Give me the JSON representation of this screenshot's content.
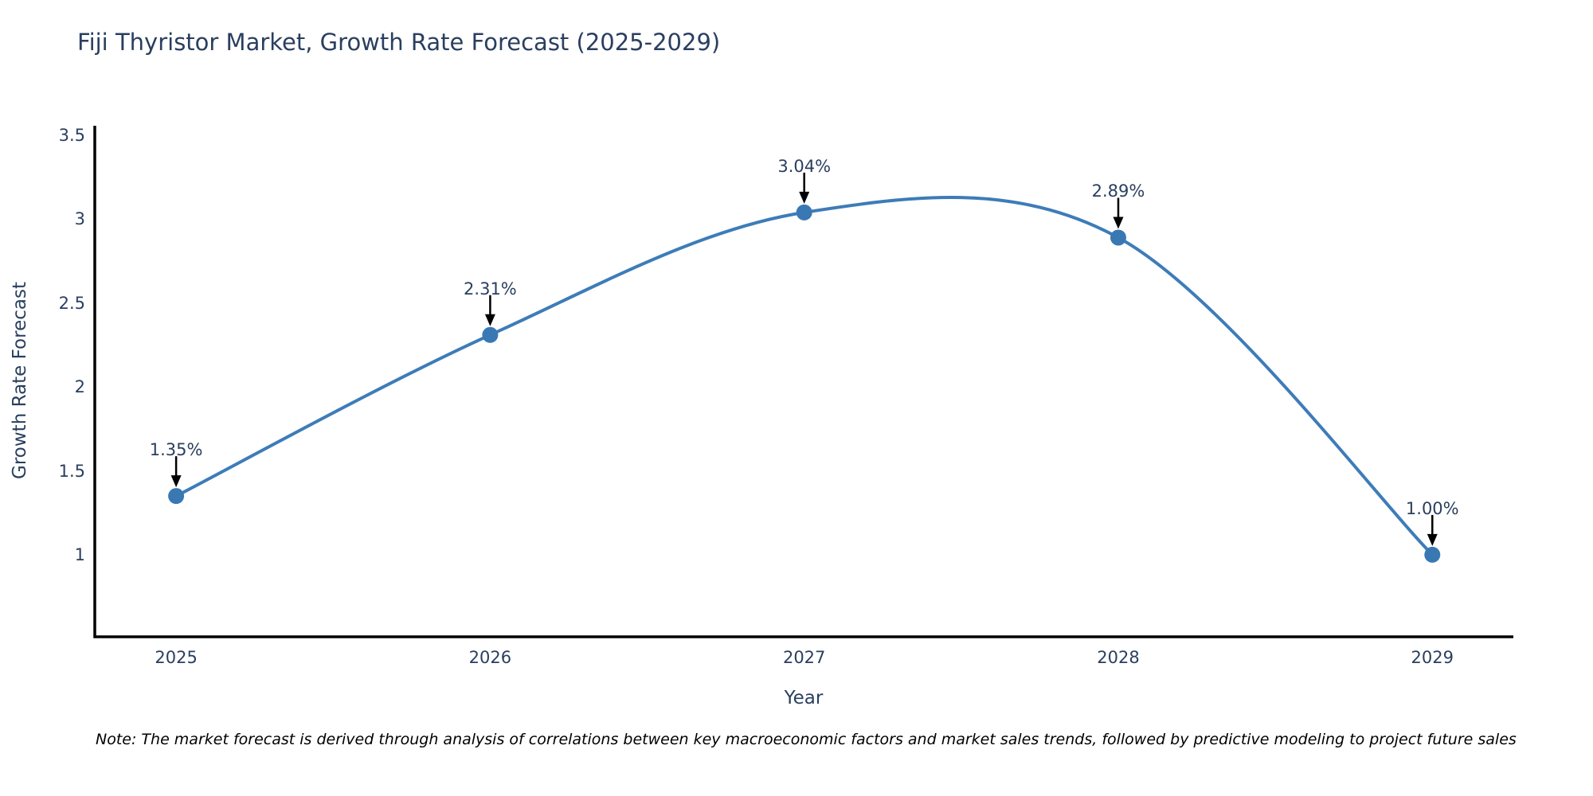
{
  "title": "Fiji Thyristor Market, Growth Rate Forecast (2025-2029)",
  "note": "Note: The market forecast is derived through analysis of correlations between key macroeconomic factors and market sales trends, followed by predictive modeling to project future sales",
  "chart_data": {
    "type": "line",
    "title": "Fiji Thyristor Market, Growth Rate Forecast (2025-2029)",
    "xlabel": "Year",
    "ylabel": "Growth Rate Forecast",
    "x": [
      2025,
      2026,
      2027,
      2028,
      2029
    ],
    "values": [
      1.35,
      2.31,
      3.04,
      2.89,
      1.0
    ],
    "point_labels": [
      "1.35%",
      "2.31%",
      "3.04%",
      "2.89%",
      "1.00%"
    ],
    "series_name": "Growth Rate Forecast",
    "line_shape": "spline",
    "grid": false,
    "legend": "none",
    "xticks": [
      "2025",
      "2026",
      "2027",
      "2028",
      "2029"
    ],
    "yticks": [
      "1",
      "1.5",
      "2",
      "2.5",
      "3",
      "3.5"
    ],
    "ytick_values": [
      1,
      1.5,
      2,
      2.5,
      3,
      3.5
    ],
    "xlim": [
      2024.741,
      2029.258
    ],
    "ylim": [
      0.511,
      3.547
    ],
    "colors": {
      "line": "#3d7cb8",
      "marker": "#3a78b4",
      "arrow": "#000000",
      "axis": "#000000",
      "text": "#2a3f5f",
      "note_text": "#000000",
      "background": "#ffffff"
    }
  }
}
